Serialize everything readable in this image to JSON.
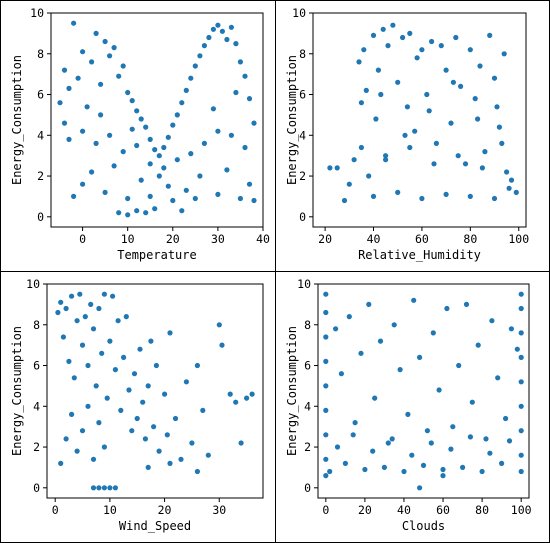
{
  "chart_data": [
    {
      "type": "scatter",
      "xlabel": "Temperature",
      "ylabel": "Energy_Consumption",
      "xlim": [
        -7,
        40
      ],
      "ylim": [
        -0.5,
        10
      ],
      "xticks": [
        0,
        10,
        20,
        30,
        40
      ],
      "yticks": [
        0,
        2,
        4,
        6,
        8,
        10
      ],
      "color": "#1f77b4",
      "grid": false,
      "points": [
        [
          -5,
          5.6
        ],
        [
          -4,
          7.2
        ],
        [
          -3,
          6.3
        ],
        [
          -2,
          9.5
        ],
        [
          -1,
          6.8
        ],
        [
          0,
          8.1
        ],
        [
          1,
          5.4
        ],
        [
          2,
          7.6
        ],
        [
          3,
          9.0
        ],
        [
          4,
          6.5
        ],
        [
          5,
          8.6
        ],
        [
          6,
          7.9
        ],
        [
          7,
          8.3
        ],
        [
          8,
          6.9
        ],
        [
          9,
          7.4
        ],
        [
          10,
          6.1
        ],
        [
          11,
          5.7
        ],
        [
          12,
          5.2
        ],
        [
          13,
          4.8
        ],
        [
          14,
          4.4
        ],
        [
          15,
          3.8
        ],
        [
          16,
          3.3
        ],
        [
          17,
          3.0
        ],
        [
          18,
          3.4
        ],
        [
          19,
          3.9
        ],
        [
          20,
          4.5
        ],
        [
          21,
          5.0
        ],
        [
          22,
          5.6
        ],
        [
          23,
          6.2
        ],
        [
          24,
          6.8
        ],
        [
          25,
          7.4
        ],
        [
          26,
          7.9
        ],
        [
          27,
          8.4
        ],
        [
          28,
          8.8
        ],
        [
          29,
          9.2
        ],
        [
          30,
          9.4
        ],
        [
          31,
          9.1
        ],
        [
          32,
          8.7
        ],
        [
          33,
          9.3
        ],
        [
          34,
          8.5
        ],
        [
          35,
          7.6
        ],
        [
          36,
          6.9
        ],
        [
          37,
          5.8
        ],
        [
          38,
          4.6
        ],
        [
          -3,
          3.8
        ],
        [
          0,
          4.2
        ],
        [
          3,
          3.6
        ],
        [
          6,
          4.0
        ],
        [
          9,
          3.2
        ],
        [
          12,
          3.5
        ],
        [
          15,
          2.6
        ],
        [
          18,
          2.4
        ],
        [
          21,
          2.8
        ],
        [
          24,
          3.1
        ],
        [
          27,
          3.6
        ],
        [
          30,
          4.2
        ],
        [
          33,
          4.0
        ],
        [
          36,
          3.4
        ],
        [
          0,
          1.6
        ],
        [
          5,
          1.2
        ],
        [
          10,
          0.9
        ],
        [
          15,
          1.0
        ],
        [
          20,
          0.8
        ],
        [
          25,
          0.9
        ],
        [
          30,
          1.1
        ],
        [
          35,
          0.9
        ],
        [
          38,
          0.8
        ],
        [
          8,
          0.2
        ],
        [
          10,
          0.1
        ],
        [
          12,
          0.3
        ],
        [
          14,
          0.2
        ],
        [
          16,
          0.4
        ],
        [
          22,
          0.3
        ],
        [
          -2,
          1.0
        ],
        [
          2,
          2.2
        ],
        [
          7,
          2.5
        ],
        [
          13,
          1.8
        ],
        [
          19,
          1.5
        ],
        [
          26,
          2.0
        ],
        [
          32,
          2.3
        ],
        [
          37,
          1.6
        ],
        [
          -4,
          4.6
        ],
        [
          4,
          5.0
        ],
        [
          11,
          4.3
        ],
        [
          17,
          2.0
        ],
        [
          23,
          1.3
        ],
        [
          29,
          5.3
        ],
        [
          34,
          6.1
        ]
      ]
    },
    {
      "type": "scatter",
      "xlabel": "Relative_Humidity",
      "ylabel": "Energy_Consumption",
      "xlim": [
        15,
        103
      ],
      "ylim": [
        -0.5,
        10
      ],
      "xticks": [
        20,
        40,
        60,
        80,
        100
      ],
      "yticks": [
        0,
        2,
        4,
        6,
        8,
        10
      ],
      "color": "#1f77b4",
      "grid": false,
      "points": [
        [
          22,
          2.4
        ],
        [
          25,
          2.4
        ],
        [
          28,
          0.8
        ],
        [
          30,
          1.6
        ],
        [
          32,
          2.8
        ],
        [
          34,
          7.6
        ],
        [
          35,
          3.4
        ],
        [
          36,
          8.2
        ],
        [
          37,
          6.2
        ],
        [
          38,
          2.0
        ],
        [
          40,
          8.9
        ],
        [
          41,
          4.8
        ],
        [
          42,
          7.2
        ],
        [
          44,
          9.2
        ],
        [
          45,
          3.0
        ],
        [
          46,
          8.4
        ],
        [
          48,
          9.4
        ],
        [
          50,
          6.6
        ],
        [
          52,
          8.8
        ],
        [
          54,
          5.4
        ],
        [
          55,
          9.0
        ],
        [
          57,
          4.2
        ],
        [
          58,
          7.8
        ],
        [
          60,
          8.2
        ],
        [
          62,
          6.0
        ],
        [
          64,
          8.6
        ],
        [
          66,
          3.6
        ],
        [
          68,
          8.4
        ],
        [
          70,
          7.2
        ],
        [
          72,
          4.6
        ],
        [
          74,
          8.8
        ],
        [
          76,
          6.4
        ],
        [
          78,
          2.6
        ],
        [
          80,
          8.2
        ],
        [
          82,
          5.8
        ],
        [
          84,
          7.4
        ],
        [
          86,
          3.2
        ],
        [
          88,
          8.9
        ],
        [
          90,
          6.8
        ],
        [
          92,
          4.4
        ],
        [
          94,
          8.0
        ],
        [
          95,
          2.2
        ],
        [
          96,
          1.4
        ],
        [
          97,
          1.8
        ],
        [
          99,
          1.2
        ],
        [
          40,
          1.0
        ],
        [
          50,
          1.2
        ],
        [
          60,
          0.9
        ],
        [
          70,
          1.1
        ],
        [
          80,
          1.0
        ],
        [
          90,
          0.9
        ],
        [
          45,
          2.8
        ],
        [
          55,
          3.4
        ],
        [
          65,
          2.6
        ],
        [
          75,
          3.0
        ],
        [
          85,
          2.4
        ],
        [
          93,
          3.6
        ],
        [
          35,
          5.6
        ],
        [
          43,
          6.0
        ],
        [
          53,
          4.0
        ],
        [
          63,
          5.2
        ],
        [
          73,
          6.6
        ],
        [
          83,
          4.8
        ],
        [
          91,
          5.4
        ]
      ]
    },
    {
      "type": "scatter",
      "xlabel": "Wind_Speed",
      "ylabel": "Energy_Consumption",
      "xlim": [
        -1.5,
        38
      ],
      "ylim": [
        -0.5,
        10
      ],
      "xticks": [
        0,
        10,
        20,
        30
      ],
      "yticks": [
        0,
        2,
        4,
        6,
        8,
        10
      ],
      "color": "#1f77b4",
      "grid": false,
      "points": [
        [
          0.5,
          8.6
        ],
        [
          1,
          9.1
        ],
        [
          1.5,
          7.4
        ],
        [
          2,
          8.8
        ],
        [
          2.5,
          6.2
        ],
        [
          3,
          9.4
        ],
        [
          3.5,
          5.4
        ],
        [
          4,
          8.2
        ],
        [
          4.5,
          9.5
        ],
        [
          5,
          7.0
        ],
        [
          5.5,
          8.4
        ],
        [
          6,
          6.0
        ],
        [
          6.5,
          9.0
        ],
        [
          7,
          7.8
        ],
        [
          7.5,
          5.0
        ],
        [
          8,
          8.8
        ],
        [
          8.5,
          6.6
        ],
        [
          9,
          9.5
        ],
        [
          9.5,
          4.4
        ],
        [
          10,
          7.2
        ],
        [
          10.5,
          9.4
        ],
        [
          11,
          5.8
        ],
        [
          11.5,
          8.2
        ],
        [
          12,
          3.8
        ],
        [
          12.5,
          6.4
        ],
        [
          13,
          8.4
        ],
        [
          13.5,
          4.8
        ],
        [
          14,
          2.8
        ],
        [
          14.5,
          5.6
        ],
        [
          15,
          3.4
        ],
        [
          15.5,
          6.8
        ],
        [
          16,
          4.2
        ],
        [
          16.5,
          2.4
        ],
        [
          17,
          5.0
        ],
        [
          17.5,
          7.2
        ],
        [
          18,
          3.0
        ],
        [
          18.5,
          6.0
        ],
        [
          19,
          1.8
        ],
        [
          20,
          4.6
        ],
        [
          20.5,
          2.6
        ],
        [
          21,
          7.6
        ],
        [
          22,
          3.4
        ],
        [
          23,
          1.4
        ],
        [
          24,
          5.2
        ],
        [
          25,
          2.2
        ],
        [
          26,
          6.0
        ],
        [
          27,
          3.8
        ],
        [
          28,
          1.6
        ],
        [
          30,
          8.0
        ],
        [
          30.5,
          7.0
        ],
        [
          32,
          4.6
        ],
        [
          33,
          4.2
        ],
        [
          34,
          2.2
        ],
        [
          35,
          4.4
        ],
        [
          36,
          4.6
        ],
        [
          26,
          0.8
        ],
        [
          21,
          1.2
        ],
        [
          17,
          1.0
        ],
        [
          7,
          0.0
        ],
        [
          8,
          0.0
        ],
        [
          9,
          0.0
        ],
        [
          10,
          0.0
        ],
        [
          11,
          0.0
        ],
        [
          1,
          1.2
        ],
        [
          2,
          2.4
        ],
        [
          3,
          3.6
        ],
        [
          4,
          1.8
        ],
        [
          5,
          2.8
        ],
        [
          6,
          4.0
        ],
        [
          7,
          1.4
        ],
        [
          8,
          3.2
        ],
        [
          9,
          2.0
        ]
      ]
    },
    {
      "type": "scatter",
      "xlabel": "Clouds",
      "ylabel": "Energy_Consumption",
      "xlim": [
        -4,
        104
      ],
      "ylim": [
        -0.5,
        10
      ],
      "xticks": [
        0,
        20,
        40,
        60,
        80,
        100
      ],
      "yticks": [
        0,
        2,
        4,
        6,
        8,
        10
      ],
      "color": "#1f77b4",
      "grid": false,
      "points": [
        [
          0,
          9.5
        ],
        [
          0,
          8.6
        ],
        [
          0,
          7.4
        ],
        [
          0,
          6.2
        ],
        [
          0,
          5.0
        ],
        [
          0,
          3.8
        ],
        [
          0,
          2.6
        ],
        [
          0,
          1.4
        ],
        [
          0,
          0.6
        ],
        [
          100,
          9.5
        ],
        [
          100,
          8.8
        ],
        [
          100,
          7.6
        ],
        [
          100,
          6.4
        ],
        [
          100,
          5.2
        ],
        [
          100,
          4.0
        ],
        [
          100,
          2.8
        ],
        [
          100,
          1.6
        ],
        [
          100,
          0.8
        ],
        [
          5,
          7.8
        ],
        [
          8,
          5.6
        ],
        [
          12,
          8.4
        ],
        [
          15,
          3.2
        ],
        [
          18,
          6.6
        ],
        [
          22,
          9.0
        ],
        [
          25,
          4.4
        ],
        [
          28,
          7.2
        ],
        [
          32,
          2.2
        ],
        [
          35,
          8.0
        ],
        [
          38,
          5.8
        ],
        [
          42,
          3.6
        ],
        [
          45,
          9.2
        ],
        [
          48,
          6.4
        ],
        [
          52,
          2.8
        ],
        [
          55,
          7.6
        ],
        [
          58,
          4.8
        ],
        [
          62,
          8.8
        ],
        [
          65,
          3.0
        ],
        [
          68,
          6.0
        ],
        [
          72,
          9.0
        ],
        [
          75,
          4.2
        ],
        [
          78,
          7.0
        ],
        [
          82,
          2.4
        ],
        [
          85,
          8.2
        ],
        [
          88,
          5.4
        ],
        [
          92,
          3.4
        ],
        [
          95,
          7.8
        ],
        [
          98,
          6.8
        ],
        [
          10,
          1.2
        ],
        [
          20,
          0.9
        ],
        [
          30,
          1.0
        ],
        [
          40,
          0.8
        ],
        [
          50,
          1.1
        ],
        [
          60,
          0.9
        ],
        [
          70,
          1.0
        ],
        [
          80,
          0.8
        ],
        [
          90,
          1.2
        ],
        [
          48,
          0.0
        ],
        [
          60,
          0.6
        ],
        [
          2,
          0.8
        ],
        [
          6,
          2.0
        ],
        [
          14,
          2.6
        ],
        [
          24,
          1.8
        ],
        [
          34,
          2.4
        ],
        [
          44,
          1.6
        ],
        [
          54,
          2.2
        ],
        [
          64,
          1.9
        ],
        [
          74,
          2.5
        ],
        [
          84,
          1.7
        ],
        [
          94,
          2.3
        ]
      ]
    }
  ]
}
